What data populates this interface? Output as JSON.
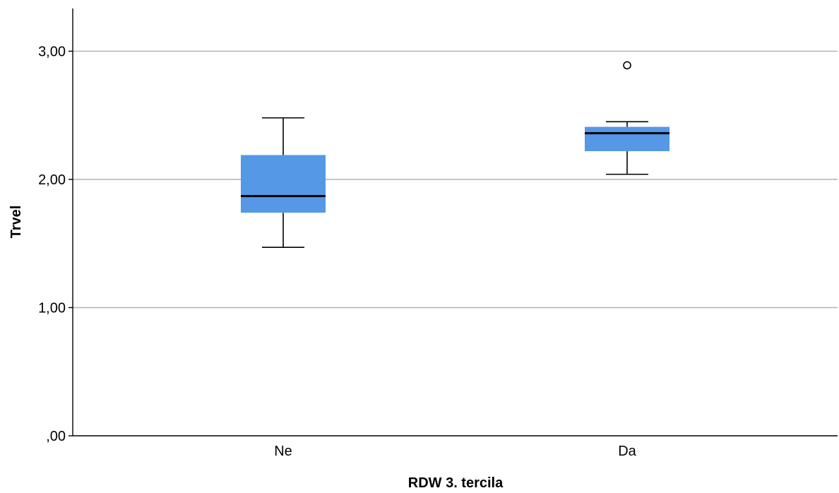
{
  "chart_data": {
    "type": "boxplot",
    "title": "",
    "xlabel": "RDW 3. tercila",
    "ylabel": "Trvel",
    "ylim": [
      0,
      3.33
    ],
    "yticks": [
      0,
      1,
      2,
      3
    ],
    "ytick_labels": [
      ",00",
      "1,00",
      "2,00",
      "3,00"
    ],
    "grid": "horizontal",
    "box_color": "#5598e6",
    "categories": [
      "Ne",
      "Da"
    ],
    "boxes": [
      {
        "category": "Ne",
        "whisker_low": 1.47,
        "q1": 1.74,
        "median": 1.87,
        "q3": 2.19,
        "whisker_high": 2.48,
        "outliers": []
      },
      {
        "category": "Da",
        "whisker_low": 2.04,
        "q1": 2.22,
        "median": 2.36,
        "q3": 2.41,
        "whisker_high": 2.45,
        "outliers": [
          2.89
        ]
      }
    ]
  }
}
